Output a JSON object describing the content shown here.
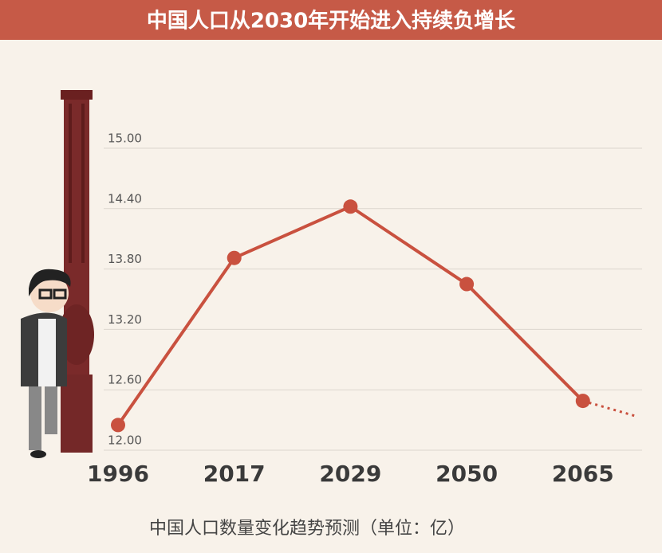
{
  "chart_data": {
    "type": "line",
    "title": "中国人口从2030年开始进入持续负增长",
    "subtitle": "中国人口数量变化趋势预测（单位：亿）",
    "categories": [
      "1996",
      "2017",
      "2029",
      "2050",
      "2065"
    ],
    "values": [
      12.25,
      13.91,
      14.42,
      13.65,
      12.49
    ],
    "color": "#c9513f",
    "ylim": [
      12,
      15
    ],
    "yticks": [
      {
        "value": 12,
        "label": "12.00"
      },
      {
        "value": 12.6,
        "label": "12.60"
      },
      {
        "value": 13.2,
        "label": "13.20"
      },
      {
        "value": 13.8,
        "label": "13.80"
      },
      {
        "value": 14.4,
        "label": "14.40"
      },
      {
        "value": 15,
        "label": "15.00"
      }
    ],
    "grid": true
  }
}
